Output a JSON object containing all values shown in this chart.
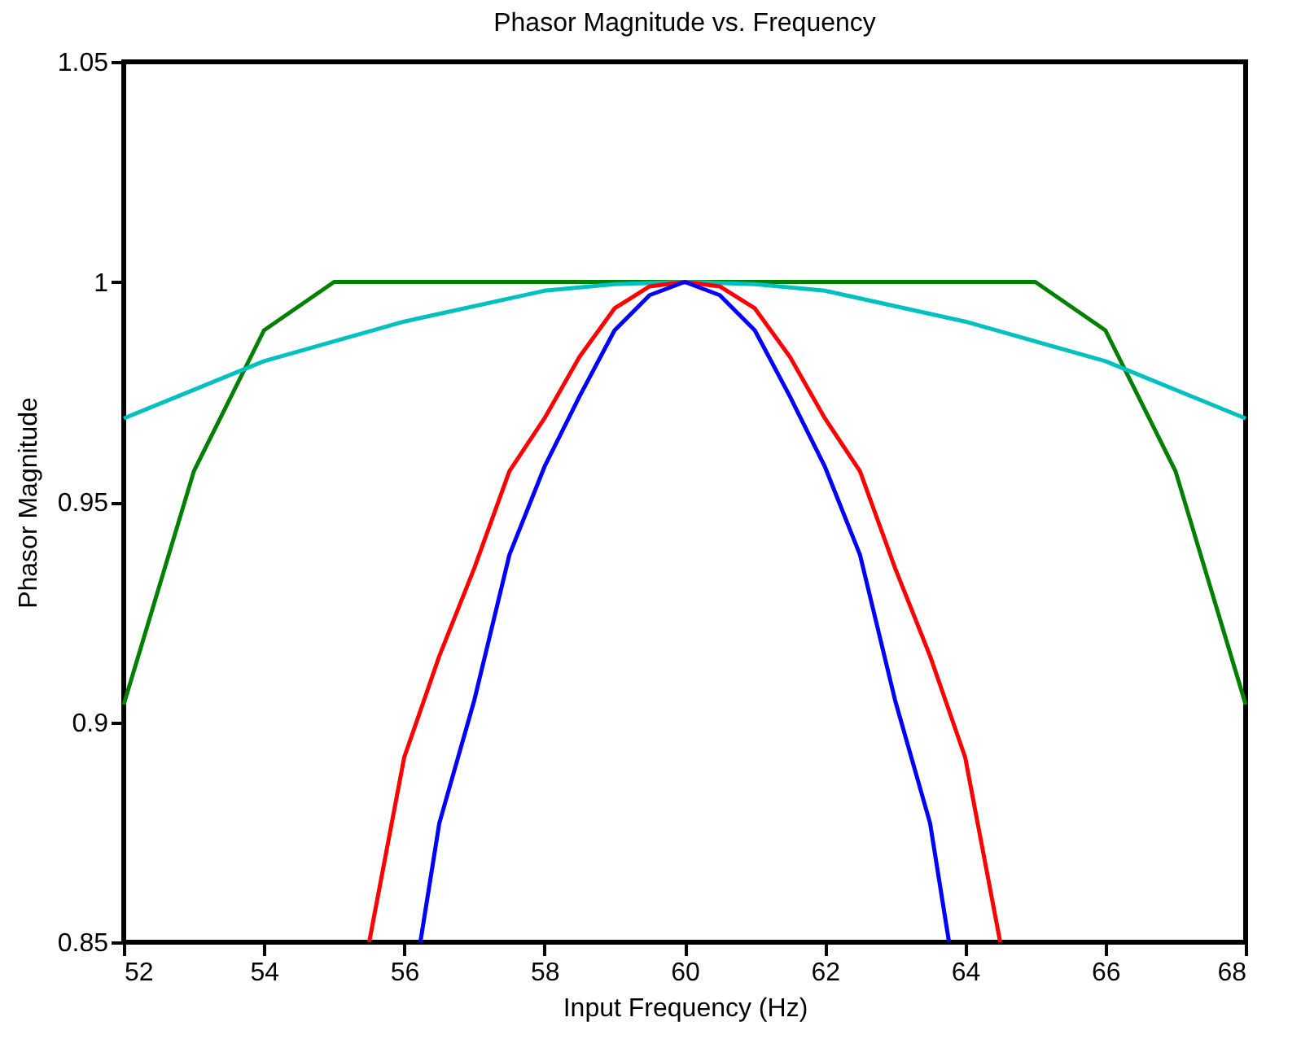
{
  "chart_data": {
    "type": "line",
    "title": "Phasor Magnitude vs. Frequency",
    "xlabel": "Input Frequency (Hz)",
    "ylabel": "Phasor Magnitude",
    "xlim": [
      52,
      68
    ],
    "ylim": [
      0.85,
      1.05
    ],
    "xticks": [
      52,
      54,
      56,
      58,
      60,
      62,
      64,
      66,
      68
    ],
    "yticks": [
      0.85,
      0.9,
      0.95,
      1,
      1.05
    ],
    "grid": false,
    "marker": "none",
    "line_style": "solid",
    "series": [
      {
        "color": "#008000",
        "x": [
          52,
          53,
          54,
          55,
          65,
          66,
          67,
          68
        ],
        "values": [
          0.904,
          0.957,
          0.989,
          1,
          1,
          0.989,
          0.957,
          0.904
        ]
      },
      {
        "color": "#00c0c0",
        "x": [
          52,
          54,
          56,
          58,
          59,
          60,
          61,
          62,
          64,
          66,
          68
        ],
        "values": [
          0.969,
          0.982,
          0.991,
          0.998,
          0.9995,
          1,
          0.9995,
          0.998,
          0.991,
          0.982,
          0.969
        ]
      },
      {
        "color": "#ff0000",
        "x": [
          55.5,
          56,
          56.5,
          57,
          57.5,
          58,
          58.5,
          59,
          59.5,
          60,
          60.5,
          61,
          61.5,
          62,
          62.5,
          63,
          63.5,
          64,
          64.5
        ],
        "values": [
          0.85,
          0.892,
          0.915,
          0.935,
          0.957,
          0.969,
          0.983,
          0.994,
          0.999,
          1,
          0.999,
          0.994,
          0.983,
          0.969,
          0.957,
          0.935,
          0.915,
          0.892,
          0.85
        ]
      },
      {
        "color": "#0000ff",
        "x": [
          56.23,
          56.5,
          57,
          57.5,
          58,
          58.5,
          59,
          59.5,
          60,
          60.5,
          61,
          61.5,
          62,
          62.5,
          63,
          63.5,
          63.77
        ],
        "values": [
          0.85,
          0.877,
          0.905,
          0.938,
          0.958,
          0.974,
          0.989,
          0.997,
          1,
          0.997,
          0.989,
          0.974,
          0.958,
          0.938,
          0.905,
          0.877,
          0.85
        ]
      }
    ]
  }
}
